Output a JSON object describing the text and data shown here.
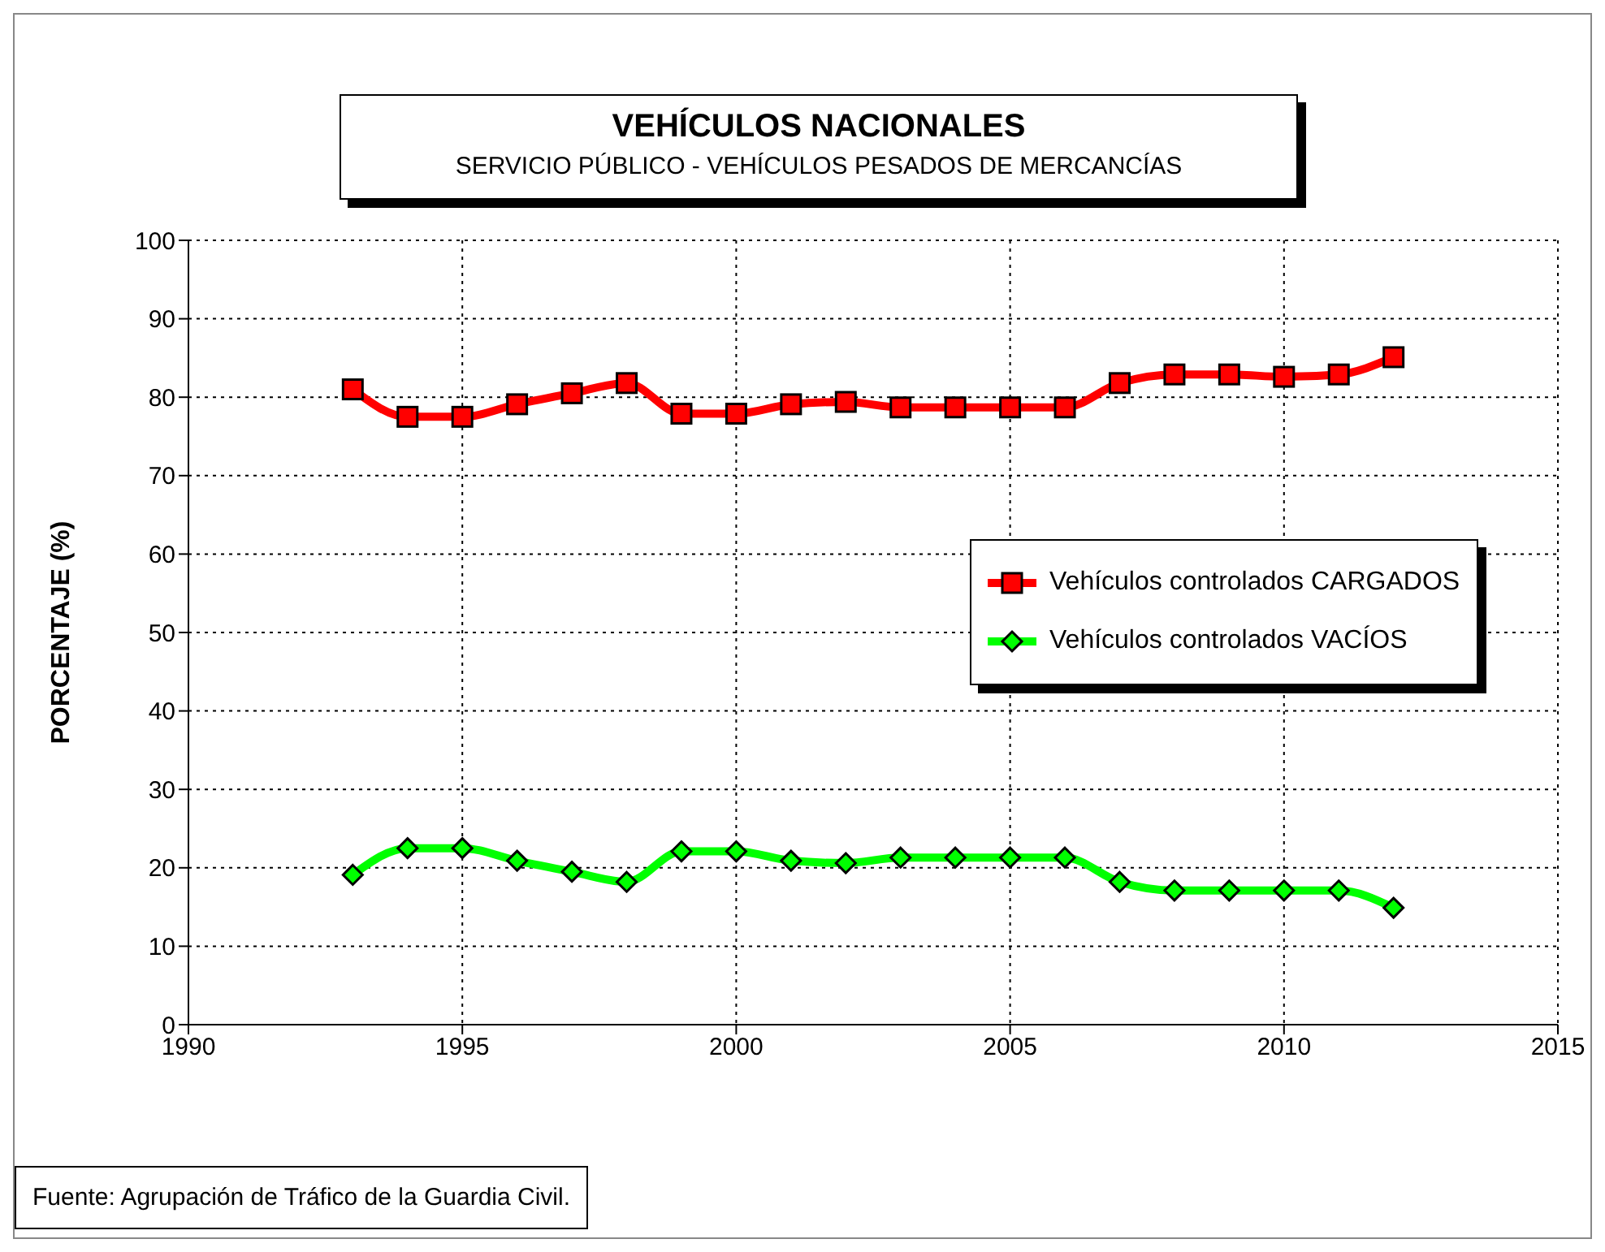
{
  "chart_data": {
    "type": "line",
    "title": "VEHÍCULOS NACIONALES",
    "subtitle": "SERVICIO PÚBLICO - VEHÍCULOS PESADOS DE MERCANCÍAS",
    "ylabel": "PORCENTAJE (%)",
    "x": [
      1993,
      1994,
      1995,
      1996,
      1997,
      1998,
      1999,
      2000,
      2001,
      2002,
      2003,
      2004,
      2005,
      2006,
      2007,
      2008,
      2009,
      2010,
      2011,
      2012
    ],
    "series": [
      {
        "name": "Vehículos controlados CARGADOS",
        "color": "#ff0000",
        "marker": "square",
        "values": [
          81,
          77.5,
          77.5,
          79.1,
          80.5,
          81.8,
          77.9,
          77.9,
          79.1,
          79.4,
          78.7,
          78.7,
          78.7,
          78.7,
          81.8,
          82.9,
          82.9,
          82.6,
          82.9,
          85.1
        ]
      },
      {
        "name": "Vehículos controlados VACÍOS",
        "color": "#00ff00",
        "marker": "diamond",
        "values": [
          19.1,
          22.5,
          22.5,
          20.9,
          19.5,
          18.2,
          22.1,
          22.1,
          20.9,
          20.6,
          21.3,
          21.3,
          21.3,
          21.3,
          18.2,
          17.1,
          17.1,
          17.1,
          17.1,
          14.9
        ]
      }
    ],
    "xlim": [
      1990,
      2015
    ],
    "xticks": [
      1990,
      1995,
      2000,
      2005,
      2010,
      2015
    ],
    "ylim": [
      0,
      100
    ],
    "yticks": [
      0,
      10,
      20,
      30,
      40,
      50,
      60,
      70,
      80,
      90,
      100
    ],
    "grid": true,
    "legend": "right",
    "line_style": "solid",
    "annotations": [
      "Fuente: Agrupación de Tráfico de la Guardia Civil."
    ]
  }
}
